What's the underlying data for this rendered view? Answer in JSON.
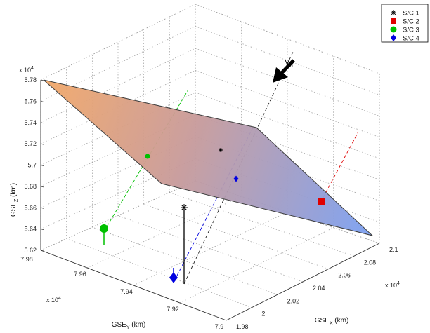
{
  "chart_data": {
    "type": "scatter",
    "grid": true,
    "axes": {
      "x": {
        "label": "GSE",
        "sub": "X",
        "unit": "(km)",
        "multiplier": "x 10",
        "exp": "4",
        "ticks": [
          "1.98",
          "2",
          "2.02",
          "2.04",
          "2.06",
          "2.08",
          "2.1"
        ]
      },
      "y": {
        "label": "GSE",
        "sub": "Y",
        "unit": "(km)",
        "multiplier": "x 10",
        "exp": "4",
        "ticks": [
          "7.98",
          "7.96",
          "7.94",
          "7.92",
          "7.9"
        ]
      },
      "z": {
        "label": "GSE",
        "sub": "Z",
        "unit": "(km)",
        "multiplier": "x 10",
        "exp": "4",
        "ticks": [
          "5.62",
          "5.64",
          "5.66",
          "5.68",
          "5.7",
          "5.72",
          "5.74",
          "5.76",
          "5.78"
        ]
      }
    },
    "legend": {
      "position": "top-right",
      "entries": [
        {
          "name": "S/C 1",
          "marker": "asterisk",
          "color": "#000000"
        },
        {
          "name": "S/C 2",
          "marker": "square",
          "color": "#e00000"
        },
        {
          "name": "S/C 3",
          "marker": "circle",
          "color": "#00c000"
        },
        {
          "name": "S/C 4",
          "marker": "diamond",
          "color": "#0000e0"
        }
      ]
    },
    "annotation": {
      "text": "V",
      "sub": "n"
    },
    "plane_colors": {
      "warm": "#f2a868",
      "cool": "#7ea0ee"
    }
  }
}
